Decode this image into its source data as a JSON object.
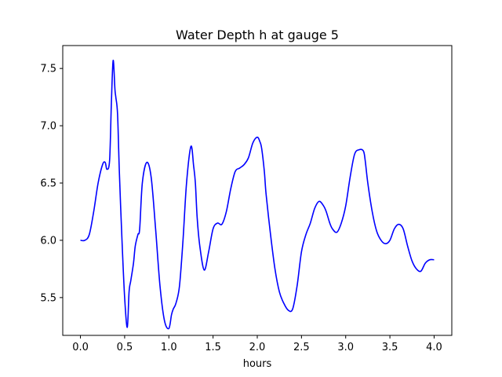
{
  "chart_data": {
    "type": "line",
    "title": "Water Depth h at gauge 5",
    "xlabel": "hours",
    "ylabel": "",
    "xlim": [
      -0.2,
      4.2
    ],
    "ylim": [
      5.17,
      7.7
    ],
    "xticks": [
      0.0,
      0.5,
      1.0,
      1.5,
      2.0,
      2.5,
      3.0,
      3.5,
      4.0
    ],
    "xtick_labels": [
      "0.0",
      "0.5",
      "1.0",
      "1.5",
      "2.0",
      "2.5",
      "3.0",
      "3.5",
      "4.0"
    ],
    "yticks": [
      5.5,
      6.0,
      6.5,
      7.0,
      7.5
    ],
    "ytick_labels": [
      "5.5",
      "6.0",
      "6.5",
      "7.0",
      "7.5"
    ],
    "grid": false,
    "legend": "none",
    "series": [
      {
        "color": "#0000ff",
        "x": [
          0.0,
          0.05,
          0.1,
          0.15,
          0.2,
          0.25,
          0.28,
          0.3,
          0.33,
          0.35,
          0.37,
          0.39,
          0.4,
          0.42,
          0.44,
          0.47,
          0.5,
          0.53,
          0.55,
          0.57,
          0.6,
          0.62,
          0.65,
          0.67,
          0.7,
          0.75,
          0.8,
          0.85,
          0.9,
          0.95,
          1.0,
          1.03,
          1.05,
          1.08,
          1.12,
          1.16,
          1.2,
          1.25,
          1.28,
          1.3,
          1.32,
          1.35,
          1.4,
          1.45,
          1.5,
          1.55,
          1.6,
          1.65,
          1.7,
          1.75,
          1.8,
          1.85,
          1.9,
          1.95,
          2.0,
          2.03,
          2.05,
          2.08,
          2.1,
          2.15,
          2.2,
          2.25,
          2.3,
          2.35,
          2.4,
          2.45,
          2.5,
          2.55,
          2.6,
          2.65,
          2.7,
          2.75,
          2.78,
          2.82,
          2.85,
          2.9,
          2.95,
          3.0,
          3.05,
          3.1,
          3.15,
          3.2,
          3.22,
          3.25,
          3.3,
          3.35,
          3.4,
          3.45,
          3.5,
          3.55,
          3.6,
          3.65,
          3.7,
          3.75,
          3.8,
          3.85,
          3.9,
          3.95,
          4.0
        ],
        "y": [
          6.0,
          6.0,
          6.05,
          6.25,
          6.5,
          6.66,
          6.68,
          6.62,
          6.7,
          7.2,
          7.57,
          7.32,
          7.25,
          7.1,
          6.6,
          6.0,
          5.5,
          5.24,
          5.55,
          5.65,
          5.8,
          5.95,
          6.05,
          6.1,
          6.5,
          6.68,
          6.55,
          6.1,
          5.6,
          5.3,
          5.23,
          5.35,
          5.4,
          5.45,
          5.6,
          6.0,
          6.5,
          6.82,
          6.65,
          6.5,
          6.2,
          5.95,
          5.74,
          5.9,
          6.1,
          6.15,
          6.14,
          6.25,
          6.45,
          6.6,
          6.63,
          6.66,
          6.72,
          6.85,
          6.9,
          6.86,
          6.8,
          6.6,
          6.4,
          6.05,
          5.75,
          5.55,
          5.45,
          5.39,
          5.4,
          5.6,
          5.9,
          6.05,
          6.15,
          6.28,
          6.34,
          6.3,
          6.25,
          6.15,
          6.1,
          6.07,
          6.15,
          6.3,
          6.55,
          6.75,
          6.79,
          6.78,
          6.7,
          6.5,
          6.25,
          6.08,
          6.0,
          5.97,
          6.0,
          6.1,
          6.14,
          6.1,
          5.95,
          5.82,
          5.75,
          5.73,
          5.8,
          5.83,
          5.83
        ]
      }
    ]
  }
}
